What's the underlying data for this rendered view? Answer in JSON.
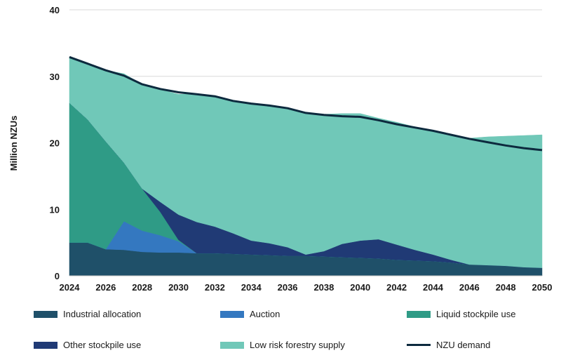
{
  "chart_data": {
    "type": "area",
    "title": "",
    "xlabel": "",
    "ylabel": "Million NZUs",
    "ylim": [
      0,
      40
    ],
    "yticks": [
      "0",
      "10",
      "20",
      "30",
      "40"
    ],
    "xticks": [
      "2024",
      "2026",
      "2028",
      "2030",
      "2032",
      "2034",
      "2036",
      "2038",
      "2040",
      "2042",
      "2044",
      "2046",
      "2048",
      "2050"
    ],
    "grid": "horizontal",
    "legend_position": "bottom",
    "x": [
      2024,
      2025,
      2026,
      2027,
      2028,
      2029,
      2030,
      2031,
      2032,
      2033,
      2034,
      2035,
      2036,
      2037,
      2038,
      2039,
      2040,
      2041,
      2042,
      2043,
      2044,
      2045,
      2046,
      2047,
      2048,
      2049,
      2050
    ],
    "series": [
      {
        "name": "Industrial allocation",
        "kind": "area",
        "color": "#1f5069",
        "values": [
          5.0,
          5.0,
          4.0,
          3.9,
          3.6,
          3.5,
          3.5,
          3.4,
          3.4,
          3.3,
          3.2,
          3.1,
          3.0,
          3.0,
          2.9,
          2.8,
          2.7,
          2.6,
          2.4,
          2.3,
          2.2,
          2.0,
          1.7,
          1.6,
          1.5,
          1.3,
          1.2
        ]
      },
      {
        "name": "Auction",
        "kind": "area",
        "color": "#3478c0",
        "values": [
          0,
          0,
          0,
          4.3,
          3.2,
          2.6,
          1.7,
          0,
          0,
          0,
          0,
          0,
          0,
          0,
          0,
          0,
          0,
          0,
          0,
          0,
          0,
          0,
          0,
          0,
          0,
          0,
          0
        ]
      },
      {
        "name": "Liquid stockpile use",
        "kind": "area",
        "color": "#2f9b86",
        "values": [
          21.0,
          18.5,
          16.2,
          8.8,
          6.3,
          3.5,
          0.2,
          0,
          0,
          0,
          0,
          0,
          0,
          0,
          0,
          0,
          0,
          0,
          0,
          0,
          0,
          0,
          0,
          0,
          0,
          0,
          0
        ]
      },
      {
        "name": "Other stockpile use",
        "kind": "area",
        "color": "#203a75",
        "values": [
          0,
          0,
          0,
          0,
          0,
          1.5,
          3.8,
          4.7,
          4.0,
          3.1,
          2.1,
          1.8,
          1.3,
          0.2,
          0.8,
          2.0,
          2.6,
          2.9,
          2.3,
          1.6,
          1.0,
          0.4,
          0,
          0,
          0,
          0,
          0
        ]
      },
      {
        "name": "Low risk forestry supply",
        "kind": "area",
        "color": "#70c8b8",
        "values": [
          6.9,
          8.3,
          10.7,
          13.4,
          15.7,
          16.9,
          18.1,
          19.2,
          19.6,
          19.9,
          20.5,
          20.8,
          21.0,
          21.3,
          20.6,
          19.6,
          19.1,
          18.2,
          18.4,
          18.5,
          18.5,
          18.8,
          19.0,
          19.3,
          19.5,
          19.8,
          20.0
        ]
      },
      {
        "name": "NZU demand",
        "kind": "line",
        "color": "#0d2a3e",
        "values": [
          32.9,
          31.9,
          30.9,
          30.1,
          28.8,
          28.1,
          27.6,
          27.3,
          27.0,
          26.3,
          25.9,
          25.6,
          25.2,
          24.5,
          24.2,
          24.0,
          23.9,
          23.4,
          22.8,
          22.3,
          21.8,
          21.2,
          20.6,
          20.1,
          19.6,
          19.2,
          18.9
        ]
      }
    ]
  },
  "legend": [
    {
      "label": "Industrial allocation",
      "color": "#1f5069",
      "kind": "area"
    },
    {
      "label": "Auction",
      "color": "#3478c0",
      "kind": "area"
    },
    {
      "label": "Liquid stockpile use",
      "color": "#2f9b86",
      "kind": "area"
    },
    {
      "label": "Other stockpile use",
      "color": "#203a75",
      "kind": "area"
    },
    {
      "label": "Low risk forestry supply",
      "color": "#70c8b8",
      "kind": "area"
    },
    {
      "label": "NZU demand",
      "color": "#0d2a3e",
      "kind": "line"
    }
  ]
}
